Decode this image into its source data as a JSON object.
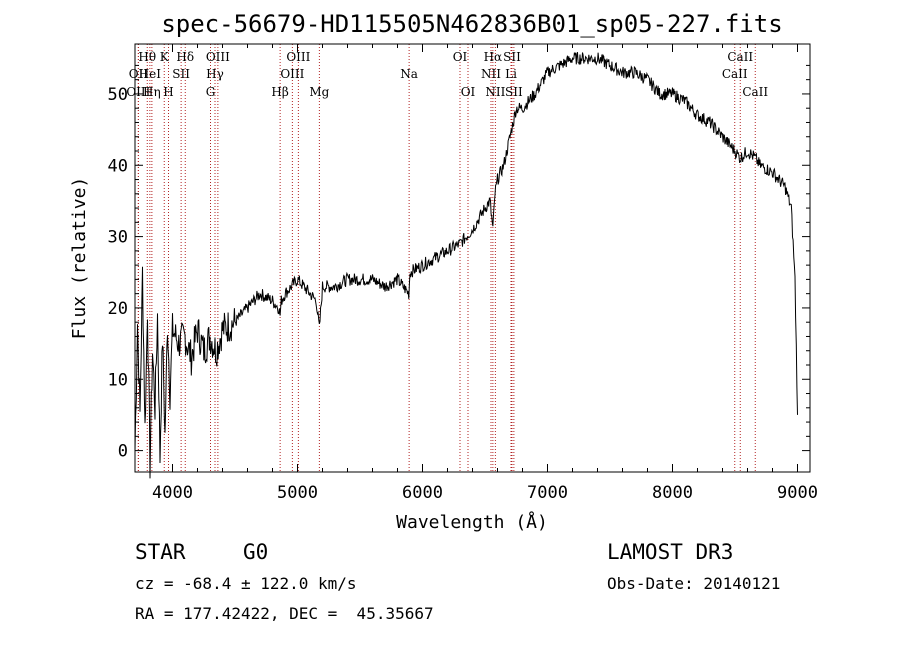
{
  "chart_data": {
    "type": "line",
    "title": "spec-56679-HD115505N462836B01_sp05-227.fits",
    "xlabel": "Wavelength (Å)",
    "ylabel": "Flux (relative)",
    "xlim": [
      3700,
      9100
    ],
    "ylim": [
      -3,
      57
    ],
    "xticks": [
      4000,
      5000,
      6000,
      7000,
      8000,
      9000
    ],
    "yticks": [
      0,
      10,
      20,
      30,
      40,
      50
    ],
    "series": [
      {
        "name": "flux",
        "x": [
          3700,
          3720,
          3740,
          3760,
          3780,
          3800,
          3820,
          3840,
          3860,
          3880,
          3900,
          3920,
          3940,
          3960,
          3980,
          4000,
          4050,
          4100,
          4150,
          4200,
          4250,
          4300,
          4350,
          4400,
          4500,
          4600,
          4700,
          4800,
          4850,
          4861,
          4870,
          4900,
          5000,
          5100,
          5150,
          5175,
          5200,
          5300,
          5400,
          5500,
          5600,
          5700,
          5800,
          5890,
          5900,
          6000,
          6100,
          6200,
          6300,
          6400,
          6500,
          6540,
          6563,
          6580,
          6600,
          6650,
          6700,
          6750,
          6800,
          6900,
          7000,
          7100,
          7200,
          7300,
          7400,
          7500,
          7600,
          7700,
          7800,
          7900,
          8000,
          8100,
          8200,
          8300,
          8400,
          8500,
          8542,
          8600,
          8662,
          8700,
          8800,
          8900,
          8950,
          8980,
          9000
        ],
        "y": [
          0,
          18,
          5,
          25,
          3,
          20,
          -2,
          14,
          6,
          19,
          -1,
          16,
          2,
          18,
          8,
          17,
          15,
          16,
          13,
          17,
          14,
          16,
          14,
          17,
          18,
          20,
          22,
          21,
          20,
          19,
          21,
          22,
          24,
          22,
          21,
          17,
          23,
          23,
          24,
          24,
          24,
          23,
          24,
          22,
          25,
          26,
          27,
          28,
          29,
          31,
          34,
          35,
          31,
          36,
          38,
          40,
          44,
          48,
          48,
          50,
          53,
          54,
          55,
          55,
          55,
          54,
          53,
          53,
          52,
          50,
          50,
          49,
          47,
          46,
          44,
          42,
          41,
          42,
          41,
          40,
          39,
          37,
          34,
          24,
          5
        ]
      }
    ],
    "lines": [
      {
        "name": "Hθ",
        "wl": 3798,
        "row": 0
      },
      {
        "name": "OII",
        "wl": 3727,
        "row": 1
      },
      {
        "name": "OIII",
        "wl": 3727,
        "row": 2
      },
      {
        "name": "HeI",
        "wl": 3819,
        "row": 1
      },
      {
        "name": "Hη",
        "wl": 3835,
        "row": 2
      },
      {
        "name": "K",
        "wl": 3934,
        "row": 0
      },
      {
        "name": "SII",
        "wl": 4069,
        "row": 1
      },
      {
        "name": "H",
        "wl": 3968,
        "row": 2
      },
      {
        "name": "Hδ",
        "wl": 4102,
        "row": 0
      },
      {
        "name": "OIII",
        "wl": 4363,
        "row": 0
      },
      {
        "name": "Hγ",
        "wl": 4340,
        "row": 1
      },
      {
        "name": "G",
        "wl": 4304,
        "row": 2
      },
      {
        "name": "Hβ",
        "wl": 4861,
        "row": 2
      },
      {
        "name": "OIII",
        "wl": 5007,
        "row": 0
      },
      {
        "name": "OIII",
        "wl": 4959,
        "row": 1
      },
      {
        "name": "Mg",
        "wl": 5175,
        "row": 2
      },
      {
        "name": "Na",
        "wl": 5893,
        "row": 1
      },
      {
        "name": "OI",
        "wl": 6300,
        "row": 0
      },
      {
        "name": "OI",
        "wl": 6364,
        "row": 2
      },
      {
        "name": "Hα",
        "wl": 6563,
        "row": 0
      },
      {
        "name": "NII",
        "wl": 6548,
        "row": 1
      },
      {
        "name": "NII",
        "wl": 6583,
        "row": 2
      },
      {
        "name": "SII",
        "wl": 6716,
        "row": 0
      },
      {
        "name": "Li",
        "wl": 6708,
        "row": 1
      },
      {
        "name": "SII",
        "wl": 6731,
        "row": 2
      },
      {
        "name": "CaII",
        "wl": 8542,
        "row": 0
      },
      {
        "name": "CaII",
        "wl": 8498,
        "row": 1
      },
      {
        "name": "CaII",
        "wl": 8662,
        "row": 2
      }
    ]
  },
  "info": {
    "object_class": "STAR",
    "subclass": "G0",
    "survey": "LAMOST DR3",
    "redshift": "cz = -68.4 ± 122.0 km/s",
    "obs_date": "Obs-Date: 20140121",
    "coords": "RA = 177.42422, DEC =  45.35667"
  }
}
